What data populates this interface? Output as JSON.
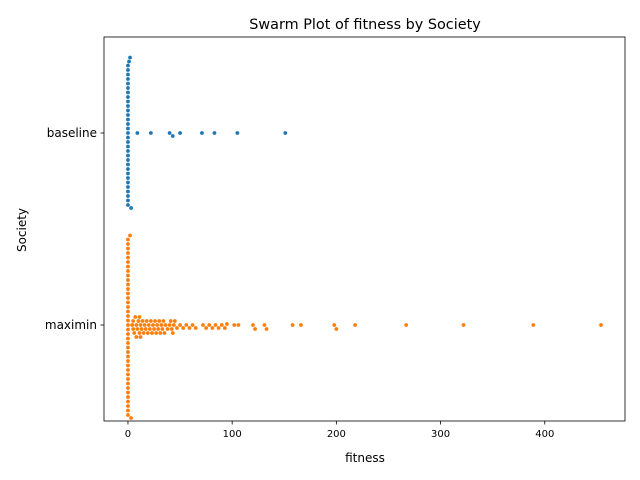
{
  "chart_data": {
    "type": "scatter",
    "subtype": "swarm",
    "title": "Swarm Plot of fitness by Society",
    "xlabel": "fitness",
    "ylabel": "Society",
    "xlim": [
      -23,
      477
    ],
    "xticks": [
      0,
      100,
      200,
      300,
      400
    ],
    "categories": [
      "baseline",
      "maximin"
    ],
    "grid": false,
    "series": [
      {
        "category": "baseline",
        "color": "#1f77b4",
        "values": [
          0,
          0,
          0,
          0,
          0,
          0,
          0,
          0,
          0,
          0,
          0,
          0,
          0,
          0,
          0,
          0,
          0,
          0,
          0,
          0,
          0,
          0,
          0,
          0,
          0,
          0,
          0,
          0,
          0,
          0,
          0,
          0,
          1,
          2,
          3,
          9,
          22,
          40,
          43,
          50,
          71,
          83,
          105,
          151
        ]
      },
      {
        "category": "maximin",
        "color": "#ff7f0e",
        "values": [
          0,
          0,
          0,
          0,
          0,
          0,
          0,
          0,
          0,
          0,
          0,
          0,
          0,
          0,
          0,
          0,
          0,
          0,
          0,
          0,
          0,
          0,
          0,
          0,
          0,
          0,
          0,
          0,
          0,
          0,
          0,
          0,
          0,
          0,
          0,
          0,
          0,
          0,
          0,
          0,
          2,
          3,
          4,
          5,
          5,
          6,
          7,
          8,
          8,
          9,
          10,
          11,
          11,
          12,
          12,
          13,
          14,
          15,
          16,
          17,
          18,
          19,
          20,
          21,
          22,
          23,
          24,
          25,
          26,
          27,
          28,
          29,
          30,
          31,
          32,
          33,
          34,
          35,
          36,
          38,
          40,
          41,
          42,
          43,
          44,
          45,
          47,
          50,
          53,
          56,
          59,
          62,
          65,
          72,
          75,
          78,
          81,
          84,
          87,
          90,
          93,
          95,
          102,
          106,
          120,
          122,
          131,
          133,
          158,
          166,
          198,
          200,
          218,
          267,
          322,
          389,
          454
        ]
      }
    ]
  }
}
